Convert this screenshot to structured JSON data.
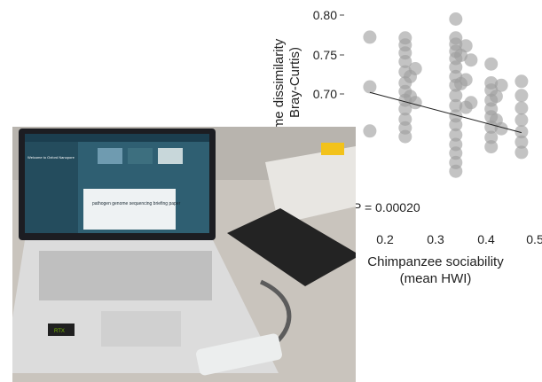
{
  "chart_data": {
    "type": "scatter",
    "title": "",
    "xlabel": "Chimpanzee sociability",
    "xlabel2": "(mean HWI)",
    "ylabel": "me dissimilarity",
    "ylabel2": "Bray-Curtis)",
    "xlim": [
      0.15,
      0.5
    ],
    "ylim": [
      0.6,
      0.8
    ],
    "xticks": [
      "0.2",
      "0.3",
      "0.4",
      "0.5"
    ],
    "yticks": [
      "0.70",
      "0.75",
      "0.80"
    ],
    "annotation": "P = 0.00020",
    "point_color": "#9e9e9e",
    "trend": {
      "x": [
        0.17,
        0.47
      ],
      "y": [
        0.702,
        0.651
      ]
    },
    "series": [
      {
        "x": [
          0.17,
          0.17,
          0.17,
          0.24,
          0.24,
          0.24,
          0.24,
          0.24,
          0.24,
          0.24,
          0.24,
          0.24,
          0.24,
          0.24,
          0.24,
          0.25,
          0.25,
          0.26,
          0.26,
          0.34,
          0.34,
          0.34,
          0.34,
          0.34,
          0.34,
          0.34,
          0.34,
          0.34,
          0.34,
          0.34,
          0.34,
          0.34,
          0.34,
          0.34,
          0.34,
          0.34,
          0.35,
          0.35,
          0.36,
          0.36,
          0.36,
          0.37,
          0.37,
          0.41,
          0.41,
          0.41,
          0.41,
          0.41,
          0.41,
          0.41,
          0.41,
          0.41,
          0.42,
          0.42,
          0.43,
          0.43,
          0.47,
          0.47,
          0.47,
          0.47,
          0.47,
          0.47,
          0.47
        ],
        "y": [
          0.772,
          0.709,
          0.653,
          0.771,
          0.762,
          0.752,
          0.741,
          0.728,
          0.714,
          0.703,
          0.692,
          0.681,
          0.668,
          0.657,
          0.646,
          0.722,
          0.697,
          0.732,
          0.689,
          0.795,
          0.771,
          0.763,
          0.754,
          0.745,
          0.734,
          0.722,
          0.711,
          0.698,
          0.685,
          0.672,
          0.661,
          0.648,
          0.636,
          0.625,
          0.613,
          0.602,
          0.749,
          0.713,
          0.761,
          0.718,
          0.683,
          0.743,
          0.689,
          0.738,
          0.714,
          0.705,
          0.692,
          0.681,
          0.671,
          0.658,
          0.645,
          0.633,
          0.697,
          0.667,
          0.711,
          0.656,
          0.716,
          0.698,
          0.682,
          0.667,
          0.652,
          0.639,
          0.626
        ]
      }
    ]
  },
  "photo": {
    "screen_title": "Welcome to Oxford Nanopore",
    "screen_headline": "pathogen genome sequencing briefing paper",
    "sticker": "RTX"
  }
}
